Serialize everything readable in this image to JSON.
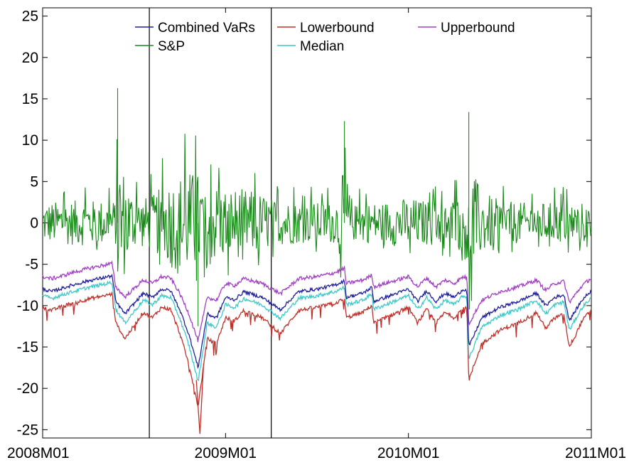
{
  "chart_data": {
    "type": "line",
    "title": "",
    "xlabel": "",
    "ylabel": "",
    "x_range": [
      "2008M01",
      "2011M01"
    ],
    "ylim": [
      -26,
      26
    ],
    "yticks": [
      -25,
      -20,
      -15,
      -10,
      -5,
      0,
      5,
      10,
      15,
      20,
      25
    ],
    "xticks": [
      {
        "label": "2008M01",
        "x": 2008.0
      },
      {
        "label": "2009M01",
        "x": 2009.0
      },
      {
        "label": "2010M01",
        "x": 2010.0
      },
      {
        "label": "2011M01",
        "x": 2011.0
      }
    ],
    "vertical_lines": [
      "2008M08",
      "2009M04"
    ],
    "grid": false,
    "legend_position": "top",
    "legend": [
      {
        "label": "Combined VaRs",
        "color": "#1f1f9e"
      },
      {
        "label": "Lowerbound",
        "color": "#c0302a"
      },
      {
        "label": "Upperbound",
        "color": "#a23fc4"
      },
      {
        "label": "S&P",
        "color": "#1a8a1a"
      },
      {
        "label": "Median",
        "color": "#3ec9c9"
      }
    ],
    "series": [
      {
        "name": "S&P",
        "color": "#1a8a1a",
        "style": "volatile",
        "x": [
          2008.0,
          2008.1,
          2008.2,
          2008.3,
          2008.4,
          2008.41,
          2008.5,
          2008.6,
          2008.7,
          2008.8,
          2008.85,
          2008.9,
          2009.0,
          2009.1,
          2009.2,
          2009.3,
          2009.4,
          2009.5,
          2009.6,
          2009.65,
          2009.7,
          2009.8,
          2009.9,
          2010.0,
          2010.1,
          2010.2,
          2010.3,
          2010.33,
          2010.4,
          2010.5,
          2010.6,
          2010.7,
          2010.8,
          2010.9,
          2011.0
        ],
        "amplitude": [
          4.5,
          4.8,
          5.0,
          5.0,
          5.0,
          16.3,
          5.2,
          6.0,
          10.0,
          11.5,
          11.0,
          9.0,
          8.0,
          7.5,
          6.5,
          5.0,
          4.5,
          4.5,
          4.5,
          12.3,
          4.0,
          4.5,
          5.0,
          5.5,
          5.0,
          5.0,
          6.0,
          13.4,
          7.0,
          5.0,
          4.5,
          4.5,
          4.5,
          4.5,
          4.5
        ]
      },
      {
        "name": "Combined VaRs",
        "color": "#1f1f9e",
        "x": [
          2008.0,
          2008.05,
          2008.15,
          2008.25,
          2008.38,
          2008.4,
          2008.45,
          2008.55,
          2008.6,
          2008.65,
          2008.7,
          2008.75,
          2008.8,
          2008.85,
          2008.9,
          2008.95,
          2009.0,
          2009.05,
          2009.1,
          2009.2,
          2009.3,
          2009.4,
          2009.5,
          2009.6,
          2009.65,
          2009.66,
          2009.75,
          2009.8,
          2009.81,
          2009.9,
          2010.0,
          2010.05,
          2010.1,
          2010.15,
          2010.2,
          2010.25,
          2010.3,
          2010.32,
          2010.33,
          2010.4,
          2010.5,
          2010.6,
          2010.7,
          2010.75,
          2010.8,
          2010.85,
          2010.88,
          2010.95,
          2011.0
        ],
        "y": [
          -8.0,
          -8.3,
          -7.6,
          -7.0,
          -6.4,
          -9.5,
          -11.0,
          -8.5,
          -9.0,
          -8.0,
          -8.2,
          -10.5,
          -13.5,
          -17.5,
          -11.0,
          -11.5,
          -9.0,
          -9.3,
          -8.3,
          -9.0,
          -10.5,
          -8.3,
          -8.0,
          -7.5,
          -7.0,
          -9.0,
          -8.5,
          -7.8,
          -9.5,
          -8.8,
          -8.0,
          -9.5,
          -8.2,
          -9.5,
          -8.5,
          -9.0,
          -8.0,
          -8.2,
          -15.0,
          -11.5,
          -10.2,
          -9.5,
          -8.5,
          -10.0,
          -9.0,
          -8.7,
          -11.8,
          -9.3,
          -8.2
        ]
      },
      {
        "name": "Median",
        "color": "#3ec9c9",
        "offset": -0.8
      },
      {
        "name": "Upperbound",
        "color": "#a23fc4",
        "offset": 1.5
      },
      {
        "name": "Lowerbound",
        "color": "#c0302a",
        "offset": -2.2
      }
    ]
  }
}
